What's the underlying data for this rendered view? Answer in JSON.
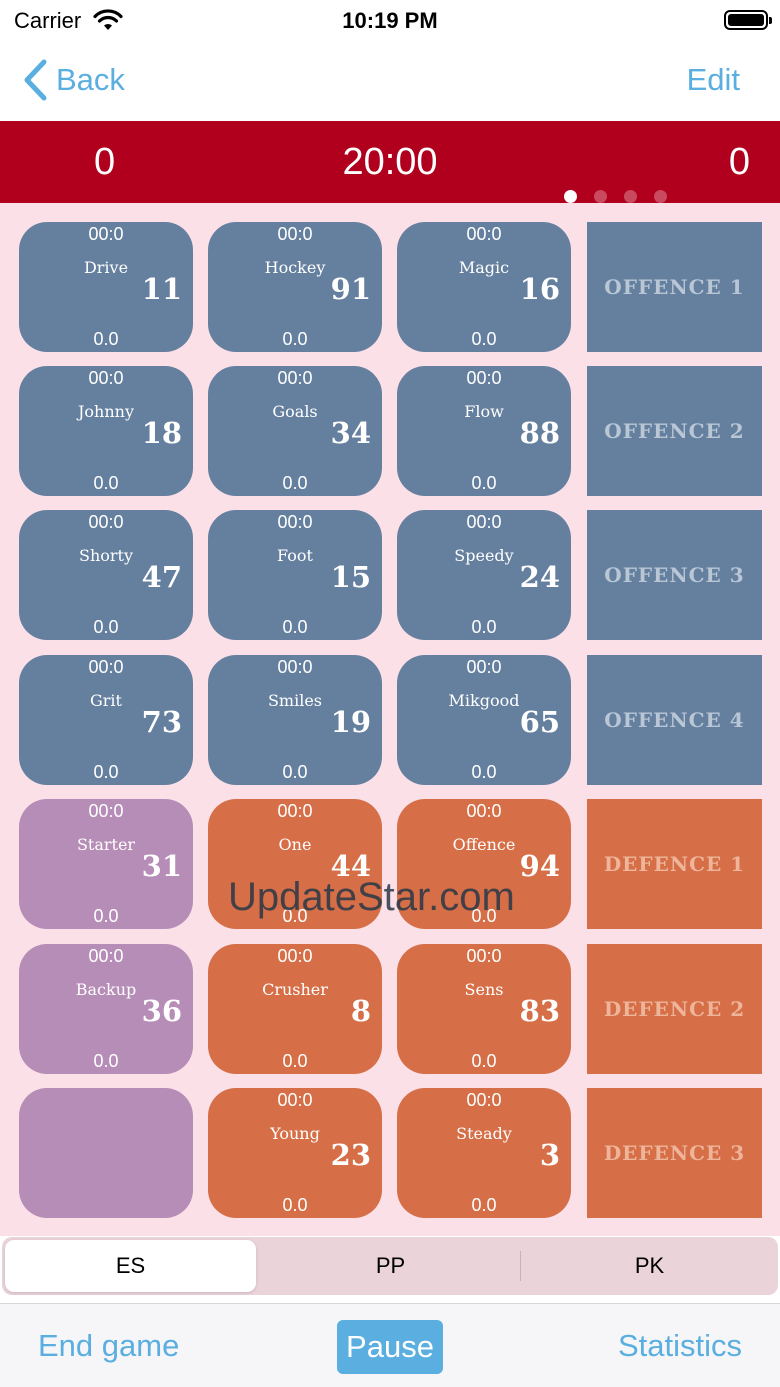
{
  "status_bar": {
    "carrier": "Carrier",
    "time": "10:19 PM"
  },
  "nav": {
    "back_label": "Back",
    "edit_label": "Edit"
  },
  "scoreboard": {
    "home_score": "0",
    "clock": "20:00",
    "away_score": "0",
    "page_dots": 4,
    "active_dot": 0
  },
  "players": [
    {
      "time": "00:0",
      "name": "Drive",
      "number": "11",
      "stat": "0.0",
      "color": "blue"
    },
    {
      "time": "00:0",
      "name": "Hockey",
      "number": "91",
      "stat": "0.0",
      "color": "blue"
    },
    {
      "time": "00:0",
      "name": "Magic",
      "number": "16",
      "stat": "0.0",
      "color": "blue"
    },
    {
      "time": "00:0",
      "name": "Johnny",
      "number": "18",
      "stat": "0.0",
      "color": "blue"
    },
    {
      "time": "00:0",
      "name": "Goals",
      "number": "34",
      "stat": "0.0",
      "color": "blue"
    },
    {
      "time": "00:0",
      "name": "Flow",
      "number": "88",
      "stat": "0.0",
      "color": "blue"
    },
    {
      "time": "00:0",
      "name": "Shorty",
      "number": "47",
      "stat": "0.0",
      "color": "blue"
    },
    {
      "time": "00:0",
      "name": "Foot",
      "number": "15",
      "stat": "0.0",
      "color": "blue"
    },
    {
      "time": "00:0",
      "name": "Speedy",
      "number": "24",
      "stat": "0.0",
      "color": "blue"
    },
    {
      "time": "00:0",
      "name": "Grit",
      "number": "73",
      "stat": "0.0",
      "color": "blue"
    },
    {
      "time": "00:0",
      "name": "Smiles",
      "number": "19",
      "stat": "0.0",
      "color": "blue"
    },
    {
      "time": "00:0",
      "name": "Mikgood",
      "number": "65",
      "stat": "0.0",
      "color": "blue"
    },
    {
      "time": "00:0",
      "name": "Starter",
      "number": "31",
      "stat": "0.0",
      "color": "purple"
    },
    {
      "time": "00:0",
      "name": "One",
      "number": "44",
      "stat": "0.0",
      "color": "orange"
    },
    {
      "time": "00:0",
      "name": "Offence",
      "number": "94",
      "stat": "0.0",
      "color": "orange"
    },
    {
      "time": "00:0",
      "name": "Backup",
      "number": "36",
      "stat": "0.0",
      "color": "purple"
    },
    {
      "time": "00:0",
      "name": "Crusher",
      "number": "8",
      "stat": "0.0",
      "color": "orange"
    },
    {
      "time": "00:0",
      "name": "Sens",
      "number": "83",
      "stat": "0.0",
      "color": "orange"
    },
    {
      "time": "",
      "name": "",
      "number": "",
      "stat": "",
      "color": "purple"
    },
    {
      "time": "00:0",
      "name": "Young",
      "number": "23",
      "stat": "0.0",
      "color": "orange"
    },
    {
      "time": "00:0",
      "name": "Steady",
      "number": "3",
      "stat": "0.0",
      "color": "orange"
    }
  ],
  "lines": [
    {
      "label": "OFFENCE 1",
      "type": "offence"
    },
    {
      "label": "OFFENCE 2",
      "type": "offence"
    },
    {
      "label": "OFFENCE 3",
      "type": "offence"
    },
    {
      "label": "OFFENCE 4",
      "type": "offence"
    },
    {
      "label": "DEFENCE 1",
      "type": "defence"
    },
    {
      "label": "DEFENCE 2",
      "type": "defence"
    },
    {
      "label": "DEFENCE 3",
      "type": "defence"
    }
  ],
  "watermark": "UpdateStar.com",
  "segments": [
    "ES",
    "PP",
    "PK"
  ],
  "active_segment": 0,
  "toolbar": {
    "end_game_label": "End game",
    "pause_label": "Pause",
    "statistics_label": "Statistics"
  },
  "colors": {
    "accent": "#5aaee0",
    "scorebar": "#b0001e",
    "background": "#fce0e8",
    "blue": "#65809f",
    "purple": "#b68db7",
    "orange": "#d66f47"
  }
}
